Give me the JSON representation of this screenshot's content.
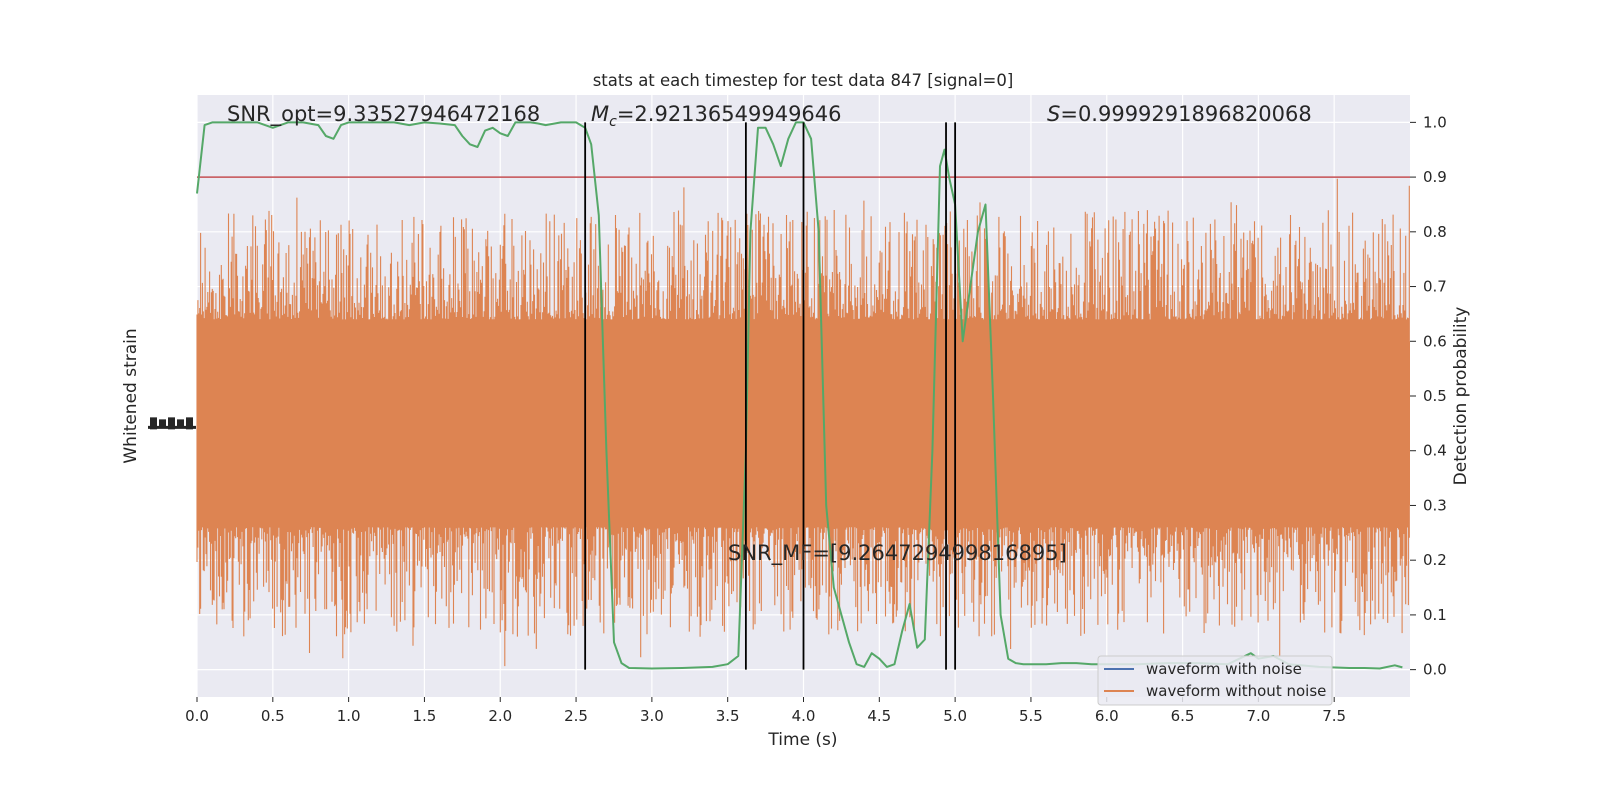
{
  "chart_data": {
    "type": "line",
    "title": "stats at each timestep for test data 847 [signal=0]",
    "xlabel": "Time (s)",
    "ylabel_left": "Whitened strain",
    "ylabel_right": "Detection probability",
    "xlim": [
      0.0,
      8.0
    ],
    "ylim_right": [
      -0.05,
      1.05
    ],
    "x_ticks": [
      "0.0",
      "0.5",
      "1.0",
      "1.5",
      "2.0",
      "2.5",
      "3.0",
      "3.5",
      "4.0",
      "4.5",
      "5.0",
      "5.5",
      "6.0",
      "6.5",
      "7.0",
      "7.5"
    ],
    "y_ticks_right": [
      "0.0",
      "0.1",
      "0.2",
      "0.3",
      "0.4",
      "0.5",
      "0.6",
      "0.7",
      "0.8",
      "0.9",
      "1.0"
    ],
    "y_ticks_left": [
      "",
      "",
      "",
      "",
      ""
    ],
    "grid": true,
    "legend_location": "lower right",
    "legend": [
      {
        "label": "waveform with noise",
        "color": "#4c72b0"
      },
      {
        "label": "waveform without noise",
        "color": "#dd8452"
      }
    ],
    "annotations": {
      "snr_opt": "SNR_opt=9.33527946472168",
      "mc_symbol": "M",
      "mc_subscript": "c",
      "mc_value": "=2.92136549949646",
      "s_symbol": "S",
      "s_value": "=0.9999291896820068",
      "snr_mf": "SNR_MF=[9.264729499816895]"
    },
    "threshold": {
      "y": 0.9,
      "color": "#c44e52"
    },
    "vertical_lines_x": [
      2.56,
      3.62,
      4.0,
      4.94,
      5.0
    ],
    "strain_band": {
      "color": "#dd8452",
      "core_range": [
        0.3,
        0.6
      ],
      "typical_peak_range": [
        0.2,
        0.8
      ],
      "max_probability_units": 0.91,
      "min_probability_units": 0.0
    },
    "series": [
      {
        "name": "detection probability",
        "color": "#55a868",
        "x": [
          0.0,
          0.05,
          0.1,
          0.2,
          0.3,
          0.4,
          0.5,
          0.6,
          0.7,
          0.8,
          0.85,
          0.9,
          0.95,
          1.0,
          1.1,
          1.2,
          1.3,
          1.4,
          1.5,
          1.6,
          1.7,
          1.75,
          1.8,
          1.85,
          1.9,
          1.95,
          2.0,
          2.05,
          2.1,
          2.15,
          2.2,
          2.25,
          2.3,
          2.4,
          2.5,
          2.56,
          2.6,
          2.65,
          2.7,
          2.75,
          2.8,
          2.85,
          3.0,
          3.2,
          3.4,
          3.5,
          3.57,
          3.62,
          3.65,
          3.7,
          3.75,
          3.8,
          3.85,
          3.9,
          3.95,
          4.0,
          4.05,
          4.1,
          4.15,
          4.2,
          4.25,
          4.3,
          4.35,
          4.4,
          4.45,
          4.5,
          4.55,
          4.6,
          4.65,
          4.7,
          4.75,
          4.8,
          4.85,
          4.9,
          4.93,
          4.96,
          5.0,
          5.05,
          5.1,
          5.15,
          5.2,
          5.25,
          5.3,
          5.35,
          5.4,
          5.45,
          5.5,
          5.6,
          5.7,
          5.8,
          5.9,
          6.0,
          6.2,
          6.4,
          6.5,
          6.6,
          6.8,
          6.95,
          7.0,
          7.1,
          7.2,
          7.4,
          7.6,
          7.7,
          7.8,
          7.9,
          7.95
        ],
        "y": [
          0.87,
          0.995,
          1.0,
          1.0,
          1.0,
          1.0,
          0.99,
          1.0,
          1.0,
          0.995,
          0.975,
          0.97,
          0.995,
          1.0,
          1.0,
          1.0,
          1.0,
          0.995,
          1.0,
          0.998,
          0.995,
          0.975,
          0.96,
          0.955,
          0.985,
          0.99,
          0.98,
          0.975,
          1.0,
          1.0,
          1.0,
          0.998,
          0.995,
          1.0,
          1.0,
          0.99,
          0.96,
          0.83,
          0.4,
          0.05,
          0.012,
          0.003,
          0.002,
          0.003,
          0.005,
          0.01,
          0.025,
          0.4,
          0.8,
          0.99,
          0.99,
          0.96,
          0.92,
          0.97,
          1.0,
          1.0,
          0.97,
          0.8,
          0.3,
          0.15,
          0.1,
          0.05,
          0.01,
          0.005,
          0.03,
          0.02,
          0.005,
          0.01,
          0.07,
          0.12,
          0.04,
          0.055,
          0.4,
          0.92,
          0.95,
          0.9,
          0.85,
          0.6,
          0.7,
          0.8,
          0.85,
          0.5,
          0.1,
          0.02,
          0.012,
          0.01,
          0.01,
          0.01,
          0.012,
          0.012,
          0.01,
          0.01,
          0.01,
          0.012,
          0.012,
          0.012,
          0.01,
          0.03,
          0.02,
          0.025,
          0.01,
          0.005,
          0.003,
          0.003,
          0.002,
          0.008,
          0.004
        ]
      },
      {
        "name": "waveform with noise",
        "color": "#4c72b0",
        "values": []
      },
      {
        "name": "waveform without noise",
        "color": "#dd8452",
        "values": []
      }
    ]
  }
}
